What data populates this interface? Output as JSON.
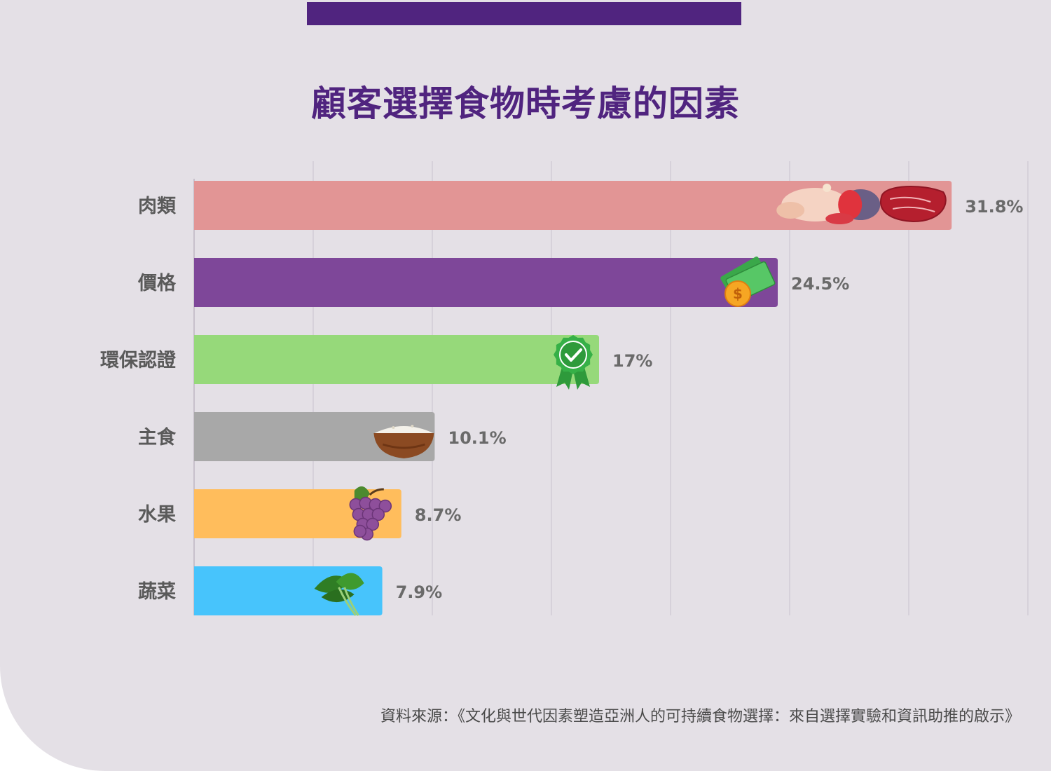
{
  "header": {
    "title": "顧客選擇食物時考慮的因素",
    "accent_color": "#50247f"
  },
  "chart_data": {
    "type": "bar",
    "orientation": "horizontal",
    "title": "顧客選擇食物時考慮的因素",
    "categories": [
      "肉類",
      "價格",
      "環保認證",
      "主食",
      "水果",
      "蔬菜"
    ],
    "values": [
      31.8,
      24.5,
      17,
      10.1,
      8.7,
      7.9
    ],
    "value_labels": [
      "31.8%",
      "24.5%",
      "17%",
      "10.1%",
      "8.7%",
      "7.9%"
    ],
    "colors": [
      "#e29595",
      "#7e4799",
      "#96d97a",
      "#a8a8a8",
      "#ffbd5c",
      "#47c4fc"
    ],
    "icons": [
      "meat-icon",
      "money-icon",
      "certified-badge-icon",
      "rice-bowl-icon",
      "grapes-icon",
      "spinach-icon"
    ],
    "xlim": [
      0,
      35
    ],
    "grid": true,
    "xlabel": "",
    "ylabel": ""
  },
  "footer": {
    "source": "資料來源：《文化與世代因素塑造亞洲人的可持續食物選擇：來自選擇實驗和資訊助推的啟示》"
  }
}
